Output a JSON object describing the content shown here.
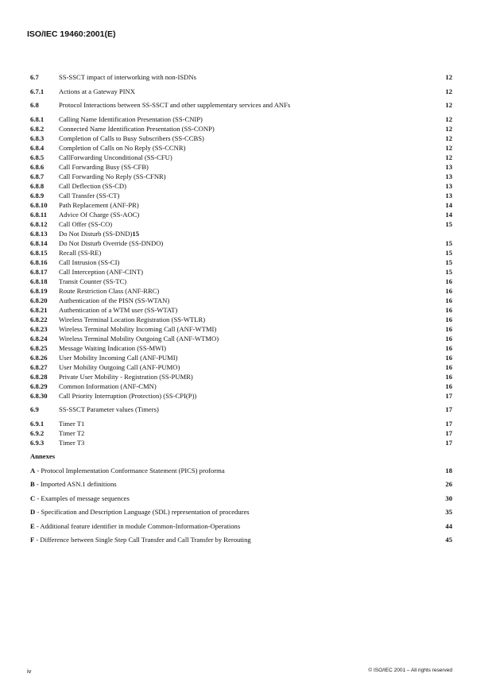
{
  "header": {
    "title": "ISO/IEC 19460:2001(E)"
  },
  "toc": [
    {
      "items": [
        {
          "num": "6.7",
          "title": "SS-SSCT impact of interworking with non-ISDNs",
          "page": "12"
        }
      ]
    },
    {
      "items": [
        {
          "num": "6.7.1",
          "title": "Actions at a Gateway PINX",
          "page": "12"
        }
      ]
    },
    {
      "items": [
        {
          "num": "6.8",
          "title": "Protocol Interactions between SS-SSCT and other supplementary services and ANFs",
          "page": "12"
        }
      ]
    },
    {
      "items": [
        {
          "num": "6.8.1",
          "title": "Calling Name Identification Presentation (SS-CNIP)",
          "page": "12"
        },
        {
          "num": "6.8.2",
          "title": "Connected Name Identification Presentation (SS-CONP)",
          "page": "12"
        },
        {
          "num": "6.8.3",
          "title": "Completion of Calls to Busy Subscribers (SS-CCBS)",
          "page": "12"
        },
        {
          "num": "6.8.4",
          "title": "Completion of Calls on No Reply (SS-CCNR)",
          "page": "12"
        },
        {
          "num": "6.8.5",
          "title": "CallForwarding Unconditional (SS-CFU)",
          "page": "12"
        },
        {
          "num": "6.8.6",
          "title": "Call Forwarding Busy (SS-CFB)",
          "page": "13"
        },
        {
          "num": "6.8.7",
          "title": "Call Forwarding No Reply (SS-CFNR)",
          "page": "13"
        },
        {
          "num": "6.8.8",
          "title": "Call Deflection (SS-CD)",
          "page": "13"
        },
        {
          "num": "6.8.9",
          "title": "Call Transfer (SS-CT)",
          "page": "13"
        },
        {
          "num": "6.8.10",
          "title": "Path Replacement (ANF-PR)",
          "page": "14"
        },
        {
          "num": "6.8.11",
          "title": "Advice Of Charge (SS-AOC)",
          "page": "14"
        },
        {
          "num": "6.8.12",
          "title": "Call Offer (SS-CO)",
          "page": "15"
        },
        {
          "num": "6.8.13",
          "title": "Do Not Disturb (SS-DND)",
          "inline_page": "15",
          "page": ""
        },
        {
          "num": "6.8.14",
          "title": "Do Not Disturb Override (SS-DNDO)",
          "page": "15"
        },
        {
          "num": "6.8.15",
          "title": "Recall (SS-RE)",
          "page": "15"
        },
        {
          "num": "6.8.16",
          "title": "Call Intrusion (SS-CI)",
          "page": "15"
        },
        {
          "num": "6.8.17",
          "title": "Call Interception (ANF-CINT)",
          "page": "15"
        },
        {
          "num": "6.8.18",
          "title": "Transit Counter (SS-TC)",
          "page": "16"
        },
        {
          "num": "6.8.19",
          "title": "Route Restriction Class (ANF-RRC)",
          "page": "16"
        },
        {
          "num": "6.8.20",
          "title": "Authentication of the PISN (SS-WTAN)",
          "page": "16"
        },
        {
          "num": "6.8.21",
          "title": "Authentication of a WTM user (SS-WTAT)",
          "page": "16"
        },
        {
          "num": "6.8.22",
          "title": "Wireless Terminal Location Registration (SS-WTLR)",
          "page": "16"
        },
        {
          "num": "6.8.23",
          "title": "Wireless Terminal Mobility Incoming Call (ANF-WTMI)",
          "page": "16"
        },
        {
          "num": "6.8.24",
          "title": "Wireless Terminal Mobility Outgoing Call (ANF-WTMO)",
          "page": "16"
        },
        {
          "num": "6.8.25",
          "title": "Message Waiting Indication (SS-MWI)",
          "page": "16"
        },
        {
          "num": "6.8.26",
          "title": "User Mobility Incoming Call (ANF-PUMI)",
          "page": "16"
        },
        {
          "num": "6.8.27",
          "title": "User Mobility Outgoing Call (ANF-PUMO)",
          "page": "16"
        },
        {
          "num": "6.8.28",
          "title": "Private User Mobility - Registration (SS-PUMR)",
          "page": "16"
        },
        {
          "num": "6.8.29",
          "title": "Common Information (ANF-CMN)",
          "page": "16"
        },
        {
          "num": "6.8.30",
          "title": "Call Priority Interruption (Protection) (SS-CPI(P))",
          "page": "17"
        }
      ]
    },
    {
      "items": [
        {
          "num": "6.9",
          "title": "SS-SSCT Parameter values (Timers)",
          "page": "17"
        }
      ]
    },
    {
      "items": [
        {
          "num": "6.9.1",
          "title": "Timer T1",
          "page": "17"
        },
        {
          "num": "6.9.2",
          "title": "Timer T2",
          "page": "17"
        },
        {
          "num": "6.9.3",
          "title": "Timer T3",
          "page": "17"
        }
      ]
    }
  ],
  "annexes": {
    "heading": "Annexes",
    "items": [
      {
        "letter": "A",
        "title": "Protocol Implementation Conformance Statement (PICS) proforma",
        "page": "18"
      },
      {
        "letter": "B",
        "title": "Imported ASN.1 definitions",
        "page": "26"
      },
      {
        "letter": "C",
        "title": "Examples of message sequences",
        "page": "30"
      },
      {
        "letter": "D",
        "title": "Specification and Description Language (SDL) representation of procedures",
        "page": "35"
      },
      {
        "letter": "E",
        "title": "Additional feature identifier in module Common-Information-Operations",
        "page": "44"
      },
      {
        "letter": "F",
        "title": "Difference between Single Step Call Transfer and Call Transfer by Rerouting",
        "page": "45"
      }
    ]
  },
  "footer": {
    "page_number": "iv",
    "copyright": "© ISO/IEC 2001 – All rights reserved"
  }
}
